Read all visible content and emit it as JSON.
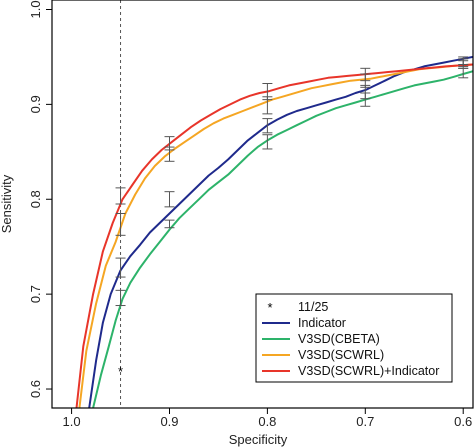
{
  "chart_data": {
    "type": "line",
    "title": "",
    "xlabel": "Specificity",
    "ylabel": "Sensitivity",
    "xlim": [
      1.02,
      0.59
    ],
    "ylim": [
      0.58,
      1.01
    ],
    "x_reversed": true,
    "x_ticks": [
      1.0,
      0.9,
      0.8,
      0.7,
      0.6
    ],
    "x_tick_labels": [
      "1.0",
      "0.9",
      "0.8",
      "0.7",
      "0.6"
    ],
    "y_ticks": [
      0.6,
      0.7,
      0.8,
      0.9,
      1.0
    ],
    "y_tick_labels": [
      "0.6",
      "0.7",
      "0.8",
      "0.9",
      "1.0"
    ],
    "reference_line": {
      "x": 0.95,
      "style": "dashed",
      "color": "#555555"
    },
    "marker": {
      "x": 0.95,
      "y": 0.62,
      "symbol": "*",
      "label": "11/25"
    },
    "legend": {
      "placement": "bottom-right",
      "entries": [
        "11/25",
        "Indicator",
        "V3SD(CBETA)",
        "V3SD(SCWRL)",
        "V3SD(SCWRL)+Indicator"
      ]
    },
    "series": [
      {
        "name": "Indicator",
        "color": "#1f2a8c",
        "points": [
          [
            0.982,
            0.58
          ],
          [
            0.975,
            0.63
          ],
          [
            0.968,
            0.67
          ],
          [
            0.96,
            0.7
          ],
          [
            0.95,
            0.725
          ],
          [
            0.94,
            0.74
          ],
          [
            0.93,
            0.752
          ],
          [
            0.92,
            0.765
          ],
          [
            0.91,
            0.775
          ],
          [
            0.9,
            0.785
          ],
          [
            0.89,
            0.795
          ],
          [
            0.88,
            0.805
          ],
          [
            0.87,
            0.815
          ],
          [
            0.86,
            0.825
          ],
          [
            0.85,
            0.833
          ],
          [
            0.84,
            0.842
          ],
          [
            0.83,
            0.852
          ],
          [
            0.82,
            0.862
          ],
          [
            0.81,
            0.87
          ],
          [
            0.8,
            0.878
          ],
          [
            0.79,
            0.884
          ],
          [
            0.78,
            0.889
          ],
          [
            0.77,
            0.893
          ],
          [
            0.76,
            0.896
          ],
          [
            0.75,
            0.899
          ],
          [
            0.74,
            0.902
          ],
          [
            0.73,
            0.905
          ],
          [
            0.72,
            0.908
          ],
          [
            0.71,
            0.912
          ],
          [
            0.7,
            0.915
          ],
          [
            0.69,
            0.92
          ],
          [
            0.68,
            0.925
          ],
          [
            0.67,
            0.93
          ],
          [
            0.66,
            0.934
          ],
          [
            0.65,
            0.937
          ],
          [
            0.64,
            0.94
          ],
          [
            0.63,
            0.942
          ],
          [
            0.62,
            0.944
          ],
          [
            0.61,
            0.946
          ],
          [
            0.6,
            0.948
          ],
          [
            0.59,
            0.95
          ]
        ]
      },
      {
        "name": "V3SD(CBETA)",
        "color": "#2db36a",
        "points": [
          [
            0.978,
            0.58
          ],
          [
            0.97,
            0.615
          ],
          [
            0.962,
            0.645
          ],
          [
            0.955,
            0.672
          ],
          [
            0.948,
            0.695
          ],
          [
            0.94,
            0.712
          ],
          [
            0.93,
            0.728
          ],
          [
            0.92,
            0.742
          ],
          [
            0.91,
            0.755
          ],
          [
            0.9,
            0.768
          ],
          [
            0.89,
            0.78
          ],
          [
            0.88,
            0.79
          ],
          [
            0.87,
            0.8
          ],
          [
            0.86,
            0.81
          ],
          [
            0.85,
            0.818
          ],
          [
            0.84,
            0.826
          ],
          [
            0.83,
            0.836
          ],
          [
            0.82,
            0.846
          ],
          [
            0.81,
            0.855
          ],
          [
            0.8,
            0.862
          ],
          [
            0.79,
            0.868
          ],
          [
            0.78,
            0.873
          ],
          [
            0.77,
            0.878
          ],
          [
            0.76,
            0.883
          ],
          [
            0.75,
            0.888
          ],
          [
            0.74,
            0.892
          ],
          [
            0.73,
            0.896
          ],
          [
            0.72,
            0.899
          ],
          [
            0.71,
            0.902
          ],
          [
            0.7,
            0.905
          ],
          [
            0.69,
            0.908
          ],
          [
            0.68,
            0.911
          ],
          [
            0.67,
            0.914
          ],
          [
            0.66,
            0.917
          ],
          [
            0.65,
            0.92
          ],
          [
            0.64,
            0.922
          ],
          [
            0.63,
            0.924
          ],
          [
            0.62,
            0.926
          ],
          [
            0.61,
            0.929
          ],
          [
            0.6,
            0.932
          ],
          [
            0.59,
            0.935
          ]
        ]
      },
      {
        "name": "V3SD(SCWRL)",
        "color": "#f5a623",
        "points": [
          [
            0.992,
            0.58
          ],
          [
            0.985,
            0.64
          ],
          [
            0.975,
            0.69
          ],
          [
            0.965,
            0.73
          ],
          [
            0.955,
            0.755
          ],
          [
            0.945,
            0.785
          ],
          [
            0.935,
            0.805
          ],
          [
            0.925,
            0.822
          ],
          [
            0.915,
            0.835
          ],
          [
            0.905,
            0.845
          ],
          [
            0.895,
            0.853
          ],
          [
            0.885,
            0.86
          ],
          [
            0.875,
            0.867
          ],
          [
            0.865,
            0.874
          ],
          [
            0.855,
            0.88
          ],
          [
            0.845,
            0.885
          ],
          [
            0.835,
            0.889
          ],
          [
            0.825,
            0.893
          ],
          [
            0.815,
            0.897
          ],
          [
            0.805,
            0.901
          ],
          [
            0.795,
            0.905
          ],
          [
            0.785,
            0.908
          ],
          [
            0.775,
            0.911
          ],
          [
            0.765,
            0.914
          ],
          [
            0.755,
            0.917
          ],
          [
            0.745,
            0.919
          ],
          [
            0.735,
            0.921
          ],
          [
            0.725,
            0.923
          ],
          [
            0.715,
            0.925
          ],
          [
            0.705,
            0.926
          ],
          [
            0.695,
            0.927
          ],
          [
            0.685,
            0.929
          ],
          [
            0.675,
            0.931
          ],
          [
            0.665,
            0.933
          ],
          [
            0.655,
            0.935
          ],
          [
            0.645,
            0.937
          ],
          [
            0.635,
            0.938
          ],
          [
            0.625,
            0.939
          ],
          [
            0.615,
            0.94
          ],
          [
            0.605,
            0.941
          ],
          [
            0.59,
            0.942
          ]
        ]
      },
      {
        "name": "V3SD(SCWRL)+Indicator",
        "color": "#e8352a",
        "points": [
          [
            0.995,
            0.58
          ],
          [
            0.988,
            0.645
          ],
          [
            0.978,
            0.7
          ],
          [
            0.968,
            0.745
          ],
          [
            0.958,
            0.775
          ],
          [
            0.948,
            0.8
          ],
          [
            0.938,
            0.815
          ],
          [
            0.928,
            0.83
          ],
          [
            0.918,
            0.842
          ],
          [
            0.908,
            0.852
          ],
          [
            0.898,
            0.86
          ],
          [
            0.888,
            0.868
          ],
          [
            0.878,
            0.876
          ],
          [
            0.868,
            0.883
          ],
          [
            0.858,
            0.889
          ],
          [
            0.848,
            0.895
          ],
          [
            0.838,
            0.9
          ],
          [
            0.828,
            0.905
          ],
          [
            0.818,
            0.909
          ],
          [
            0.808,
            0.912
          ],
          [
            0.798,
            0.914
          ],
          [
            0.788,
            0.917
          ],
          [
            0.778,
            0.92
          ],
          [
            0.768,
            0.922
          ],
          [
            0.758,
            0.924
          ],
          [
            0.748,
            0.926
          ],
          [
            0.738,
            0.928
          ],
          [
            0.728,
            0.929
          ],
          [
            0.718,
            0.93
          ],
          [
            0.708,
            0.931
          ],
          [
            0.698,
            0.932
          ],
          [
            0.688,
            0.933
          ],
          [
            0.678,
            0.934
          ],
          [
            0.668,
            0.935
          ],
          [
            0.658,
            0.936
          ],
          [
            0.648,
            0.937
          ],
          [
            0.638,
            0.938
          ],
          [
            0.628,
            0.939
          ],
          [
            0.618,
            0.94
          ],
          [
            0.605,
            0.941
          ],
          [
            0.59,
            0.942
          ]
        ]
      }
    ],
    "error_bars": [
      {
        "x": 0.95,
        "low": 0.718,
        "high": 0.738
      },
      {
        "x": 0.95,
        "low": 0.688,
        "high": 0.704
      },
      {
        "x": 0.95,
        "low": 0.762,
        "high": 0.785
      },
      {
        "x": 0.95,
        "low": 0.795,
        "high": 0.812
      },
      {
        "x": 0.9,
        "low": 0.77,
        "high": 0.778
      },
      {
        "x": 0.9,
        "low": 0.792,
        "high": 0.808
      },
      {
        "x": 0.9,
        "low": 0.84,
        "high": 0.855
      },
      {
        "x": 0.9,
        "low": 0.852,
        "high": 0.866
      },
      {
        "x": 0.8,
        "low": 0.853,
        "high": 0.868
      },
      {
        "x": 0.8,
        "low": 0.87,
        "high": 0.885
      },
      {
        "x": 0.8,
        "low": 0.89,
        "high": 0.908
      },
      {
        "x": 0.8,
        "low": 0.905,
        "high": 0.922
      },
      {
        "x": 0.7,
        "low": 0.898,
        "high": 0.912
      },
      {
        "x": 0.7,
        "low": 0.906,
        "high": 0.92
      },
      {
        "x": 0.7,
        "low": 0.918,
        "high": 0.932
      },
      {
        "x": 0.7,
        "low": 0.925,
        "high": 0.938
      },
      {
        "x": 0.6,
        "low": 0.928,
        "high": 0.938
      },
      {
        "x": 0.6,
        "low": 0.938,
        "high": 0.946
      },
      {
        "x": 0.6,
        "low": 0.94,
        "high": 0.948
      },
      {
        "x": 0.6,
        "low": 0.942,
        "high": 0.95
      }
    ]
  }
}
